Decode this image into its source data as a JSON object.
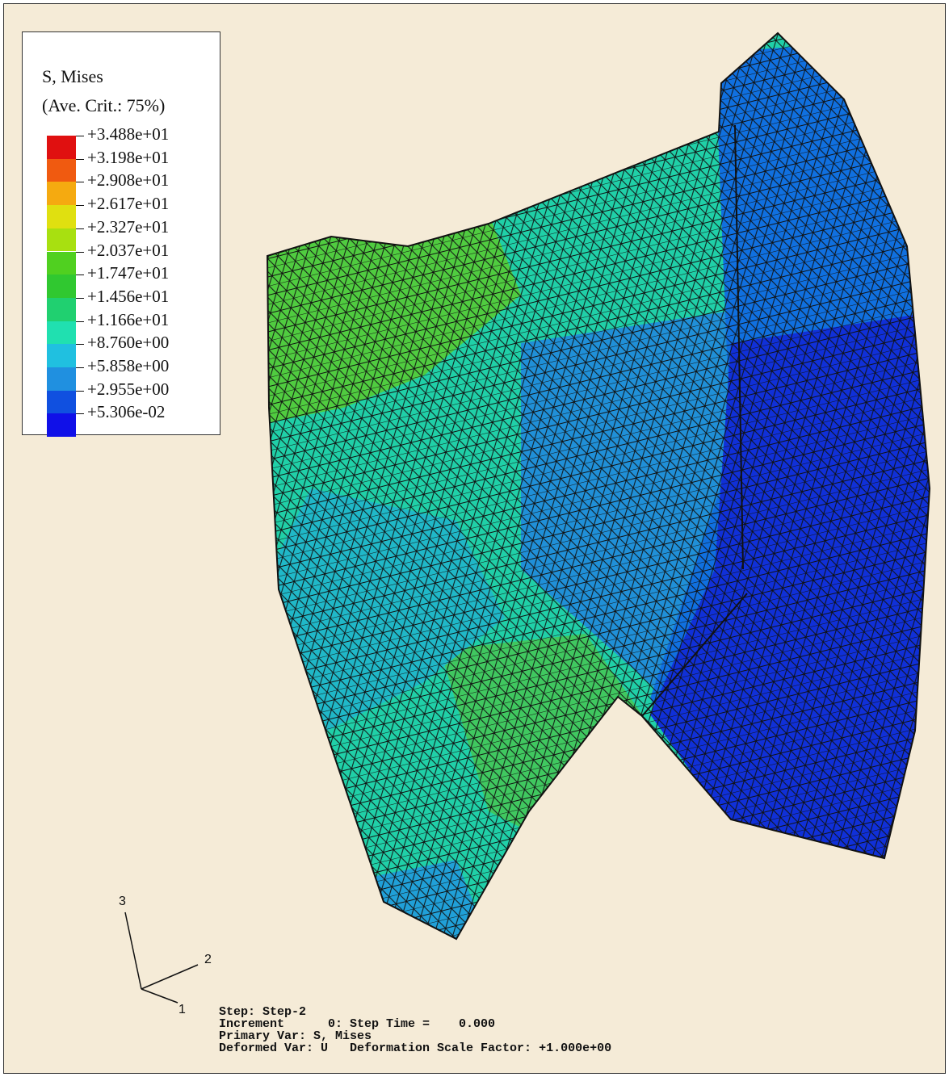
{
  "legend": {
    "title": "S, Mises",
    "subtitle": "(Ave. Crit.: 75%)",
    "levels": [
      "+3.488e+01",
      "+3.198e+01",
      "+2.908e+01",
      "+2.617e+01",
      "+2.327e+01",
      "+2.037e+01",
      "+1.747e+01",
      "+1.456e+01",
      "+1.166e+01",
      "+8.760e+00",
      "+5.858e+00",
      "+2.955e+00",
      "+5.306e-02"
    ],
    "colors": [
      "#e01010",
      "#f05a10",
      "#f5aa10",
      "#e0e010",
      "#a8e010",
      "#50d020",
      "#30c830",
      "#20d070",
      "#20e0b0",
      "#20c0e0",
      "#2090e0",
      "#1050e0",
      "#1010e8"
    ]
  },
  "triad": {
    "axis_3": "3",
    "axis_2": "2",
    "axis_1": "1"
  },
  "info": {
    "lines": [
      "Step: Step-2",
      "Increment      0: Step Time =    0.000",
      "Primary Var: S, Mises",
      "Deformed Var: U   Deformation Scale Factor: +1.000e+00"
    ]
  }
}
